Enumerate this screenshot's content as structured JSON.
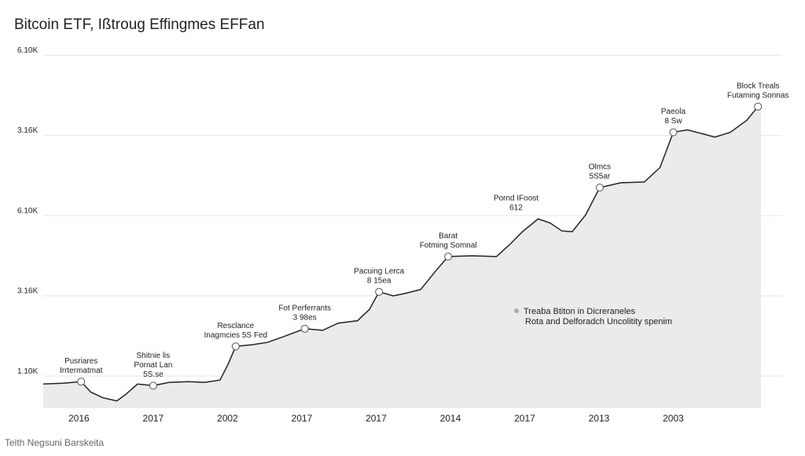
{
  "chart_data": {
    "type": "area",
    "title": "Bitcoin ETF, Ißtroug Effingmes EFFan",
    "footer": "Telth Negsuni Barskeita",
    "categories": [
      "2016",
      "2017",
      "2002",
      "2017",
      "2017",
      "2014",
      "2017",
      "2013",
      "2003"
    ],
    "xlim": [
      -0.48,
      9.18
    ],
    "ylim": [
      0.6,
      5.2
    ],
    "yticks": [
      {
        "value": 1,
        "label": "1.10K"
      },
      {
        "value": 2,
        "label": "3.16K"
      },
      {
        "value": 3,
        "label": "6.10K"
      },
      {
        "value": 4,
        "label": "3.16K"
      },
      {
        "value": 5,
        "label": "6.10K"
      }
    ],
    "grid": true,
    "color": "#222222",
    "fill": "#ebebea",
    "x": [
      -0.48,
      -0.21,
      0.03,
      0.16,
      0.32,
      0.51,
      0.63,
      0.79,
      1.0,
      1.21,
      1.48,
      1.69,
      1.9,
      2.01,
      2.11,
      2.33,
      2.54,
      2.75,
      3.04,
      3.28,
      3.49,
      3.75,
      3.91,
      4.04,
      4.23,
      4.39,
      4.6,
      4.81,
      4.97,
      5.29,
      5.62,
      5.81,
      5.97,
      6.18,
      6.34,
      6.5,
      6.64,
      6.82,
      7.01,
      7.29,
      7.61,
      7.82,
      8.0,
      8.19,
      8.4,
      8.56,
      8.77,
      8.99,
      9.14
    ],
    "values": [
      0.9,
      0.91,
      0.93,
      0.8,
      0.73,
      0.69,
      0.77,
      0.9,
      0.88,
      0.92,
      0.93,
      0.92,
      0.95,
      1.15,
      1.37,
      1.39,
      1.42,
      1.49,
      1.59,
      1.57,
      1.66,
      1.69,
      1.83,
      2.05,
      2.0,
      2.03,
      2.08,
      2.32,
      2.49,
      2.5,
      2.49,
      2.65,
      2.8,
      2.96,
      2.91,
      2.81,
      2.8,
      3.01,
      3.35,
      3.41,
      3.42,
      3.6,
      4.04,
      4.07,
      4.02,
      3.98,
      4.04,
      4.19,
      4.36
    ],
    "annotations": [
      [
        "Pusriares",
        "Irrtermatmat"
      ],
      [
        "Shitnie lis",
        "Pornat Lan",
        "5S.se"
      ],
      [
        "Resclance",
        "Inagmcies 5S Fed"
      ],
      [
        "Fot Perferrants",
        "3 98es"
      ],
      [
        "Pacuing Lerca",
        "8 15ea"
      ],
      [
        "Barat",
        "Fotming Somnal"
      ],
      [
        "Pornd IFoost",
        "612"
      ],
      [
        "Olmcs",
        "5S5ar"
      ],
      [
        "Paeola",
        "8 Sw"
      ],
      [
        "Block Treals",
        "Futaming Sonnas"
      ]
    ],
    "note": [
      "Treaba Btiton in Dicreraneles",
      "Rota and Delforadch Uncolitity spenim"
    ]
  }
}
